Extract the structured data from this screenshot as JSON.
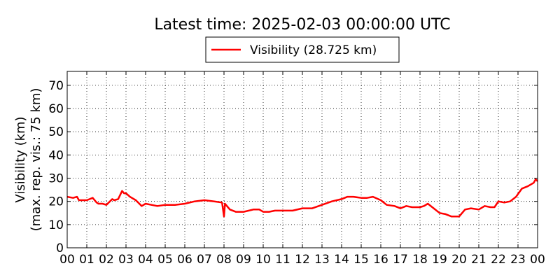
{
  "chart_data": {
    "type": "line",
    "title": "Latest time: 2025-02-03 00:00:00 UTC",
    "ylabel_line1": "Visibility (km)",
    "ylabel_line2": "(max. rep. vis.: 75 km)",
    "xlabel": "",
    "ylim": [
      0,
      76
    ],
    "xlim": [
      0,
      24
    ],
    "grid": true,
    "legend_position": "top-center",
    "x_tick_labels": [
      "00",
      "01",
      "02",
      "03",
      "04",
      "05",
      "06",
      "07",
      "08",
      "09",
      "10",
      "11",
      "12",
      "13",
      "14",
      "15",
      "16",
      "17",
      "18",
      "19",
      "20",
      "21",
      "22",
      "23",
      "00"
    ],
    "y_ticks": [
      0,
      10,
      20,
      30,
      40,
      50,
      60,
      70
    ],
    "series": [
      {
        "name": "Visibility (28.725 km)",
        "color": "#ff0000",
        "x": [
          0.0,
          0.3,
          0.5,
          0.6,
          0.8,
          1.0,
          1.3,
          1.5,
          1.6,
          1.8,
          2.0,
          2.3,
          2.4,
          2.6,
          2.8,
          2.9,
          3.0,
          3.2,
          3.5,
          3.8,
          4.0,
          4.3,
          4.6,
          5.0,
          5.5,
          6.0,
          6.5,
          7.0,
          7.5,
          7.9,
          8.0,
          8.05,
          8.1,
          8.3,
          8.6,
          9.0,
          9.5,
          9.8,
          10.0,
          10.3,
          10.6,
          11.0,
          11.5,
          12.0,
          12.5,
          13.0,
          13.5,
          14.0,
          14.3,
          14.6,
          15.0,
          15.3,
          15.6,
          16.0,
          16.3,
          16.7,
          17.0,
          17.3,
          17.6,
          18.0,
          18.2,
          18.4,
          18.7,
          19.0,
          19.3,
          19.6,
          20.0,
          20.3,
          20.6,
          21.0,
          21.3,
          21.6,
          21.8,
          22.0,
          22.3,
          22.6,
          22.9,
          23.2,
          23.5,
          23.8,
          23.9,
          24.0
        ],
        "y": [
          22,
          21.5,
          22,
          20.5,
          20.5,
          20.5,
          21.5,
          19.5,
          19,
          19,
          18.5,
          21,
          20.5,
          21,
          24.5,
          23.5,
          23.5,
          22,
          20.5,
          18,
          19,
          18.5,
          18,
          18.5,
          18.5,
          19,
          20,
          20.5,
          20,
          19.5,
          13.5,
          19,
          18.5,
          16.5,
          15.5,
          15.5,
          16.5,
          16.5,
          15.5,
          15.5,
          16,
          16,
          16,
          17,
          17,
          18.5,
          20,
          21,
          22,
          22,
          21.5,
          21.5,
          22,
          20.5,
          18.5,
          18,
          17,
          18,
          17.5,
          17.5,
          18,
          19,
          17,
          15,
          14.5,
          13.5,
          13.5,
          16.5,
          17,
          16.5,
          18,
          17.5,
          17.5,
          20,
          19.5,
          20,
          22,
          25.5,
          26.5,
          28,
          29.5,
          28.7
        ]
      }
    ]
  }
}
